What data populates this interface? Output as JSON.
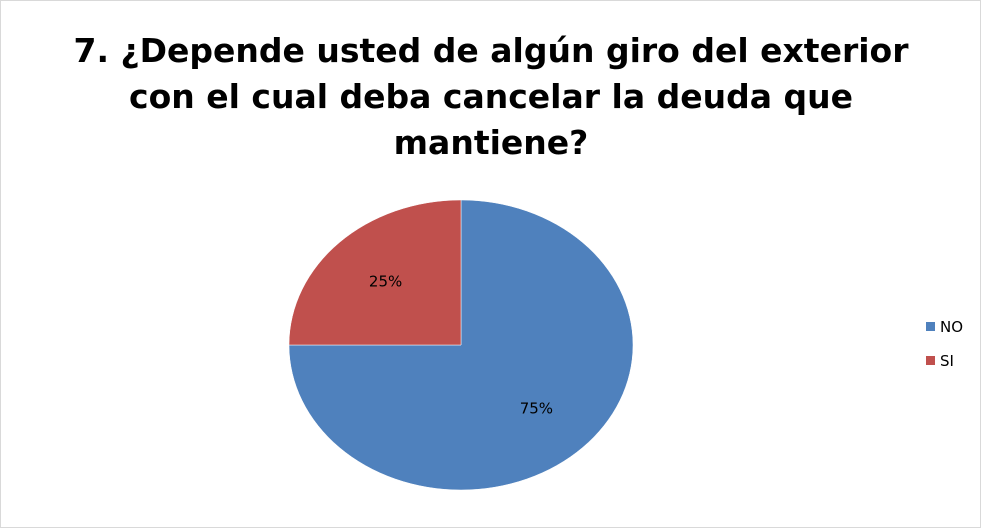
{
  "chart_data": {
    "type": "pie",
    "title": [
      "7. ¿Depende usted de algún giro del exterior",
      "con el cual deba cancelar la deuda que",
      "mantiene?"
    ],
    "categories": [
      "NO",
      "SI"
    ],
    "values": [
      75,
      25
    ],
    "value_labels": [
      "75%",
      "25%"
    ],
    "colors": [
      "#4f81bd",
      "#c0504d"
    ],
    "legend": "right"
  }
}
